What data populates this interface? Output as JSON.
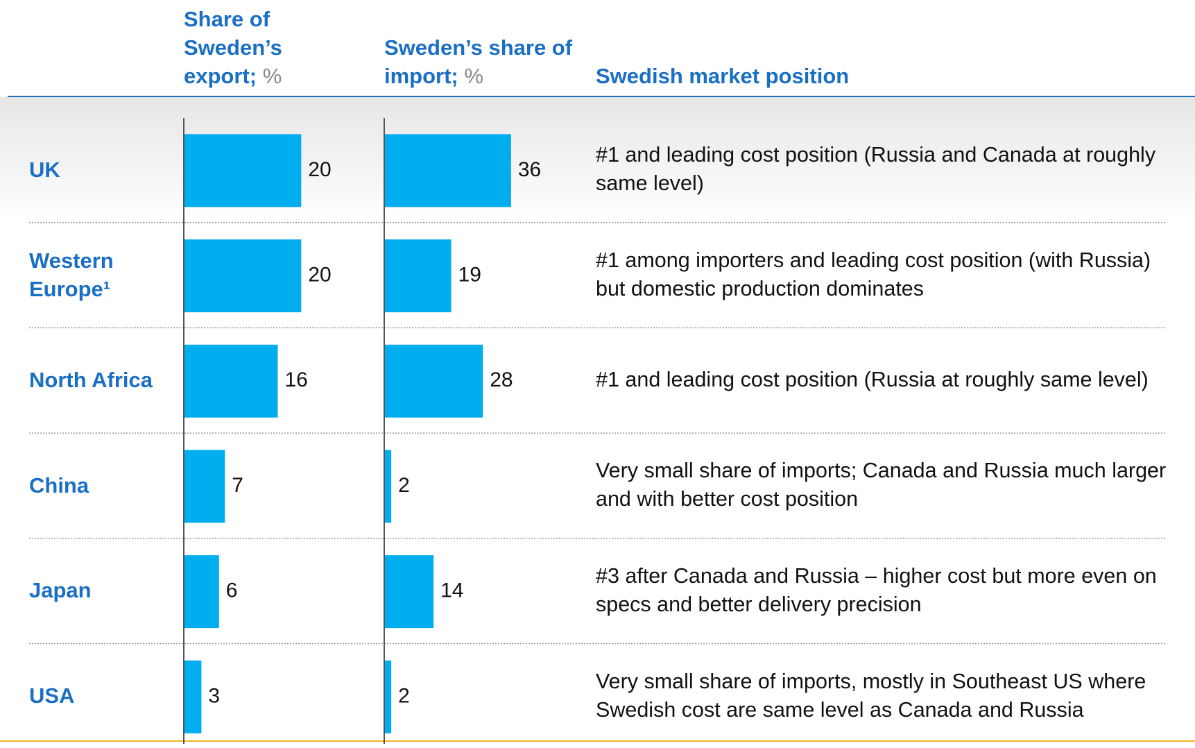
{
  "chart_data": [
    {
      "type": "bar",
      "orientation": "horizontal",
      "title": "Share of Sweden’s export;",
      "unit": "%",
      "categories": [
        "UK",
        "Western Europe¹",
        "North Africa",
        "China",
        "Japan",
        "USA"
      ],
      "values": [
        20,
        20,
        16,
        7,
        6,
        3
      ],
      "color": "#00adef",
      "xlim": [
        0,
        30
      ]
    },
    {
      "type": "bar",
      "orientation": "horizontal",
      "title": "Sweden’s share of import;",
      "unit": "%",
      "values": [
        36,
        19,
        28,
        2,
        14,
        2
      ],
      "color": "#00adef",
      "xlim": [
        0,
        50
      ]
    }
  ],
  "market_position": {
    "title": "Swedish market position",
    "texts": [
      "#1 and leading cost position (Russia and Canada at roughly same level)",
      "#1 among importers and leading cost position (with Russia) but domestic production dominates",
      "#1 and leading cost position (Russia at roughly same level)",
      "Very small share of imports; Canada and Russia much larger and with better cost position",
      "#3 after Canada and Russia – higher cost but more even on specs and better delivery precision",
      "Very small share of imports, mostly in Southeast US where Swedish cost are same level as Canada and Russia"
    ]
  }
}
